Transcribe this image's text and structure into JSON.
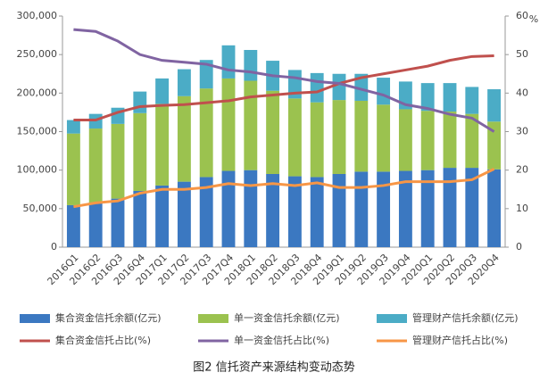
{
  "chart_data": {
    "type": "bar-line",
    "title": "图2  信托资产来源结构变动态势",
    "y2_label": "%",
    "categories": [
      "2016Q1",
      "2016Q2",
      "2016Q3",
      "2016Q4",
      "2017Q1",
      "2017Q2",
      "2017Q3",
      "2017Q4",
      "2018Q1",
      "2018Q2",
      "2018Q3",
      "2018Q4",
      "2019Q1",
      "2019Q2",
      "2019Q3",
      "2019Q4",
      "2020Q1",
      "2020Q2",
      "2020Q3",
      "2020Q4"
    ],
    "series": [
      {
        "name": "集合资金信托余额(亿元)",
        "kind": "bar",
        "color": "#3b78c1",
        "values": [
          54500,
          57000,
          63000,
          73000,
          80000,
          85000,
          91000,
          99000,
          100000,
          95000,
          92000,
          91000,
          95000,
          98000,
          98000,
          99000,
          100000,
          103000,
          103000,
          101000
        ]
      },
      {
        "name": "单一资金信托余额(亿元)",
        "kind": "bar",
        "color": "#9bc24f",
        "values": [
          93000,
          97000,
          97000,
          101000,
          106000,
          111000,
          115000,
          120000,
          116000,
          108000,
          101000,
          97000,
          96000,
          92000,
          87000,
          80000,
          77000,
          73000,
          70000,
          62000
        ]
      },
      {
        "name": "管理财产信托余额(亿元)",
        "kind": "bar",
        "color": "#4bacc6",
        "values": [
          17500,
          19000,
          21000,
          28000,
          33000,
          35000,
          37000,
          43000,
          40000,
          39000,
          37000,
          38000,
          34000,
          35000,
          35000,
          36000,
          36000,
          37000,
          35000,
          42000
        ]
      },
      {
        "name": "集合资金信托占比(%)",
        "kind": "line",
        "axis": "y2",
        "color": "#c0504d",
        "values": [
          33,
          33,
          35,
          36.5,
          36.8,
          37,
          37.5,
          38,
          39,
          39.5,
          40,
          40.3,
          42.5,
          44,
          45,
          46,
          47,
          48.5,
          49.5,
          49.7
        ]
      },
      {
        "name": "单一资金信托占比(%)",
        "kind": "line",
        "axis": "y2",
        "color": "#8064a2",
        "values": [
          56.5,
          56,
          53.5,
          50,
          48.5,
          48,
          47.5,
          46,
          45.5,
          44.5,
          44,
          43,
          42.5,
          41,
          39.5,
          37,
          36,
          34.5,
          33.5,
          30
        ]
      },
      {
        "name": "管理财产信托占比(%)",
        "kind": "line",
        "axis": "y2",
        "color": "#f79646",
        "values": [
          10.5,
          11.5,
          12,
          14,
          15,
          15,
          15.5,
          16.5,
          16,
          16.5,
          16,
          16.7,
          15.5,
          15.5,
          16,
          17,
          17,
          17,
          17.5,
          20.3
        ]
      }
    ],
    "ylim": [
      0,
      300000
    ],
    "yticks": [
      0,
      {
        "value": 50000,
        "label": "50,000"
      },
      {
        "value": 100000,
        "label": "100,000"
      },
      {
        "value": 150000,
        "label": "150,000"
      },
      {
        "value": 200000,
        "label": "200,000"
      },
      {
        "value": 250000,
        "label": "250,000"
      },
      {
        "value": 300000,
        "label": "300,000"
      }
    ],
    "y2lim": [
      0,
      60
    ],
    "y2ticks": [
      0,
      10,
      20,
      30,
      40,
      50,
      60
    ],
    "legend": "bottom"
  }
}
